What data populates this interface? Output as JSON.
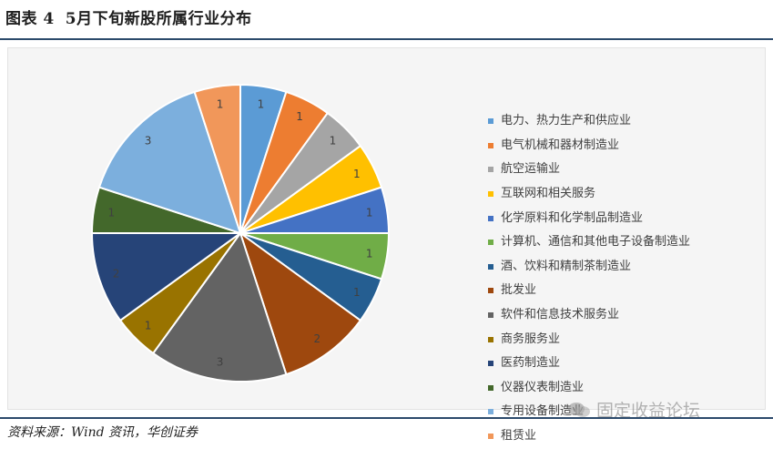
{
  "figure": {
    "label": "图表 4",
    "title": "5月下旬新股所属行业分布"
  },
  "source": "资料来源：Wind 资讯，华创证券",
  "watermark": "固定收益论坛",
  "chart_data": {
    "type": "pie",
    "title": "",
    "categories": [
      "电力、热力生产和供应业",
      "电气机械和器材制造业",
      "航空运输业",
      "互联网和相关服务",
      "化学原料和化学制品制造业",
      "计算机、通信和其他电子设备制造业",
      "酒、饮料和精制茶制造业",
      "批发业",
      "软件和信息技术服务业",
      "商务服务业",
      "医药制造业",
      "仪器仪表制造业",
      "专用设备制造业",
      "租赁业"
    ],
    "values": [
      1,
      1,
      1,
      1,
      1,
      1,
      1,
      2,
      3,
      1,
      2,
      1,
      3,
      1
    ],
    "colors": [
      "#5b9bd5",
      "#ed7d31",
      "#a5a5a5",
      "#ffc000",
      "#4472c4",
      "#70ad47",
      "#255e91",
      "#9e480e",
      "#636363",
      "#997300",
      "#264478",
      "#43682b",
      "#7cafdd",
      "#f1975a"
    ],
    "legend_position": "right",
    "data_labels": true
  }
}
